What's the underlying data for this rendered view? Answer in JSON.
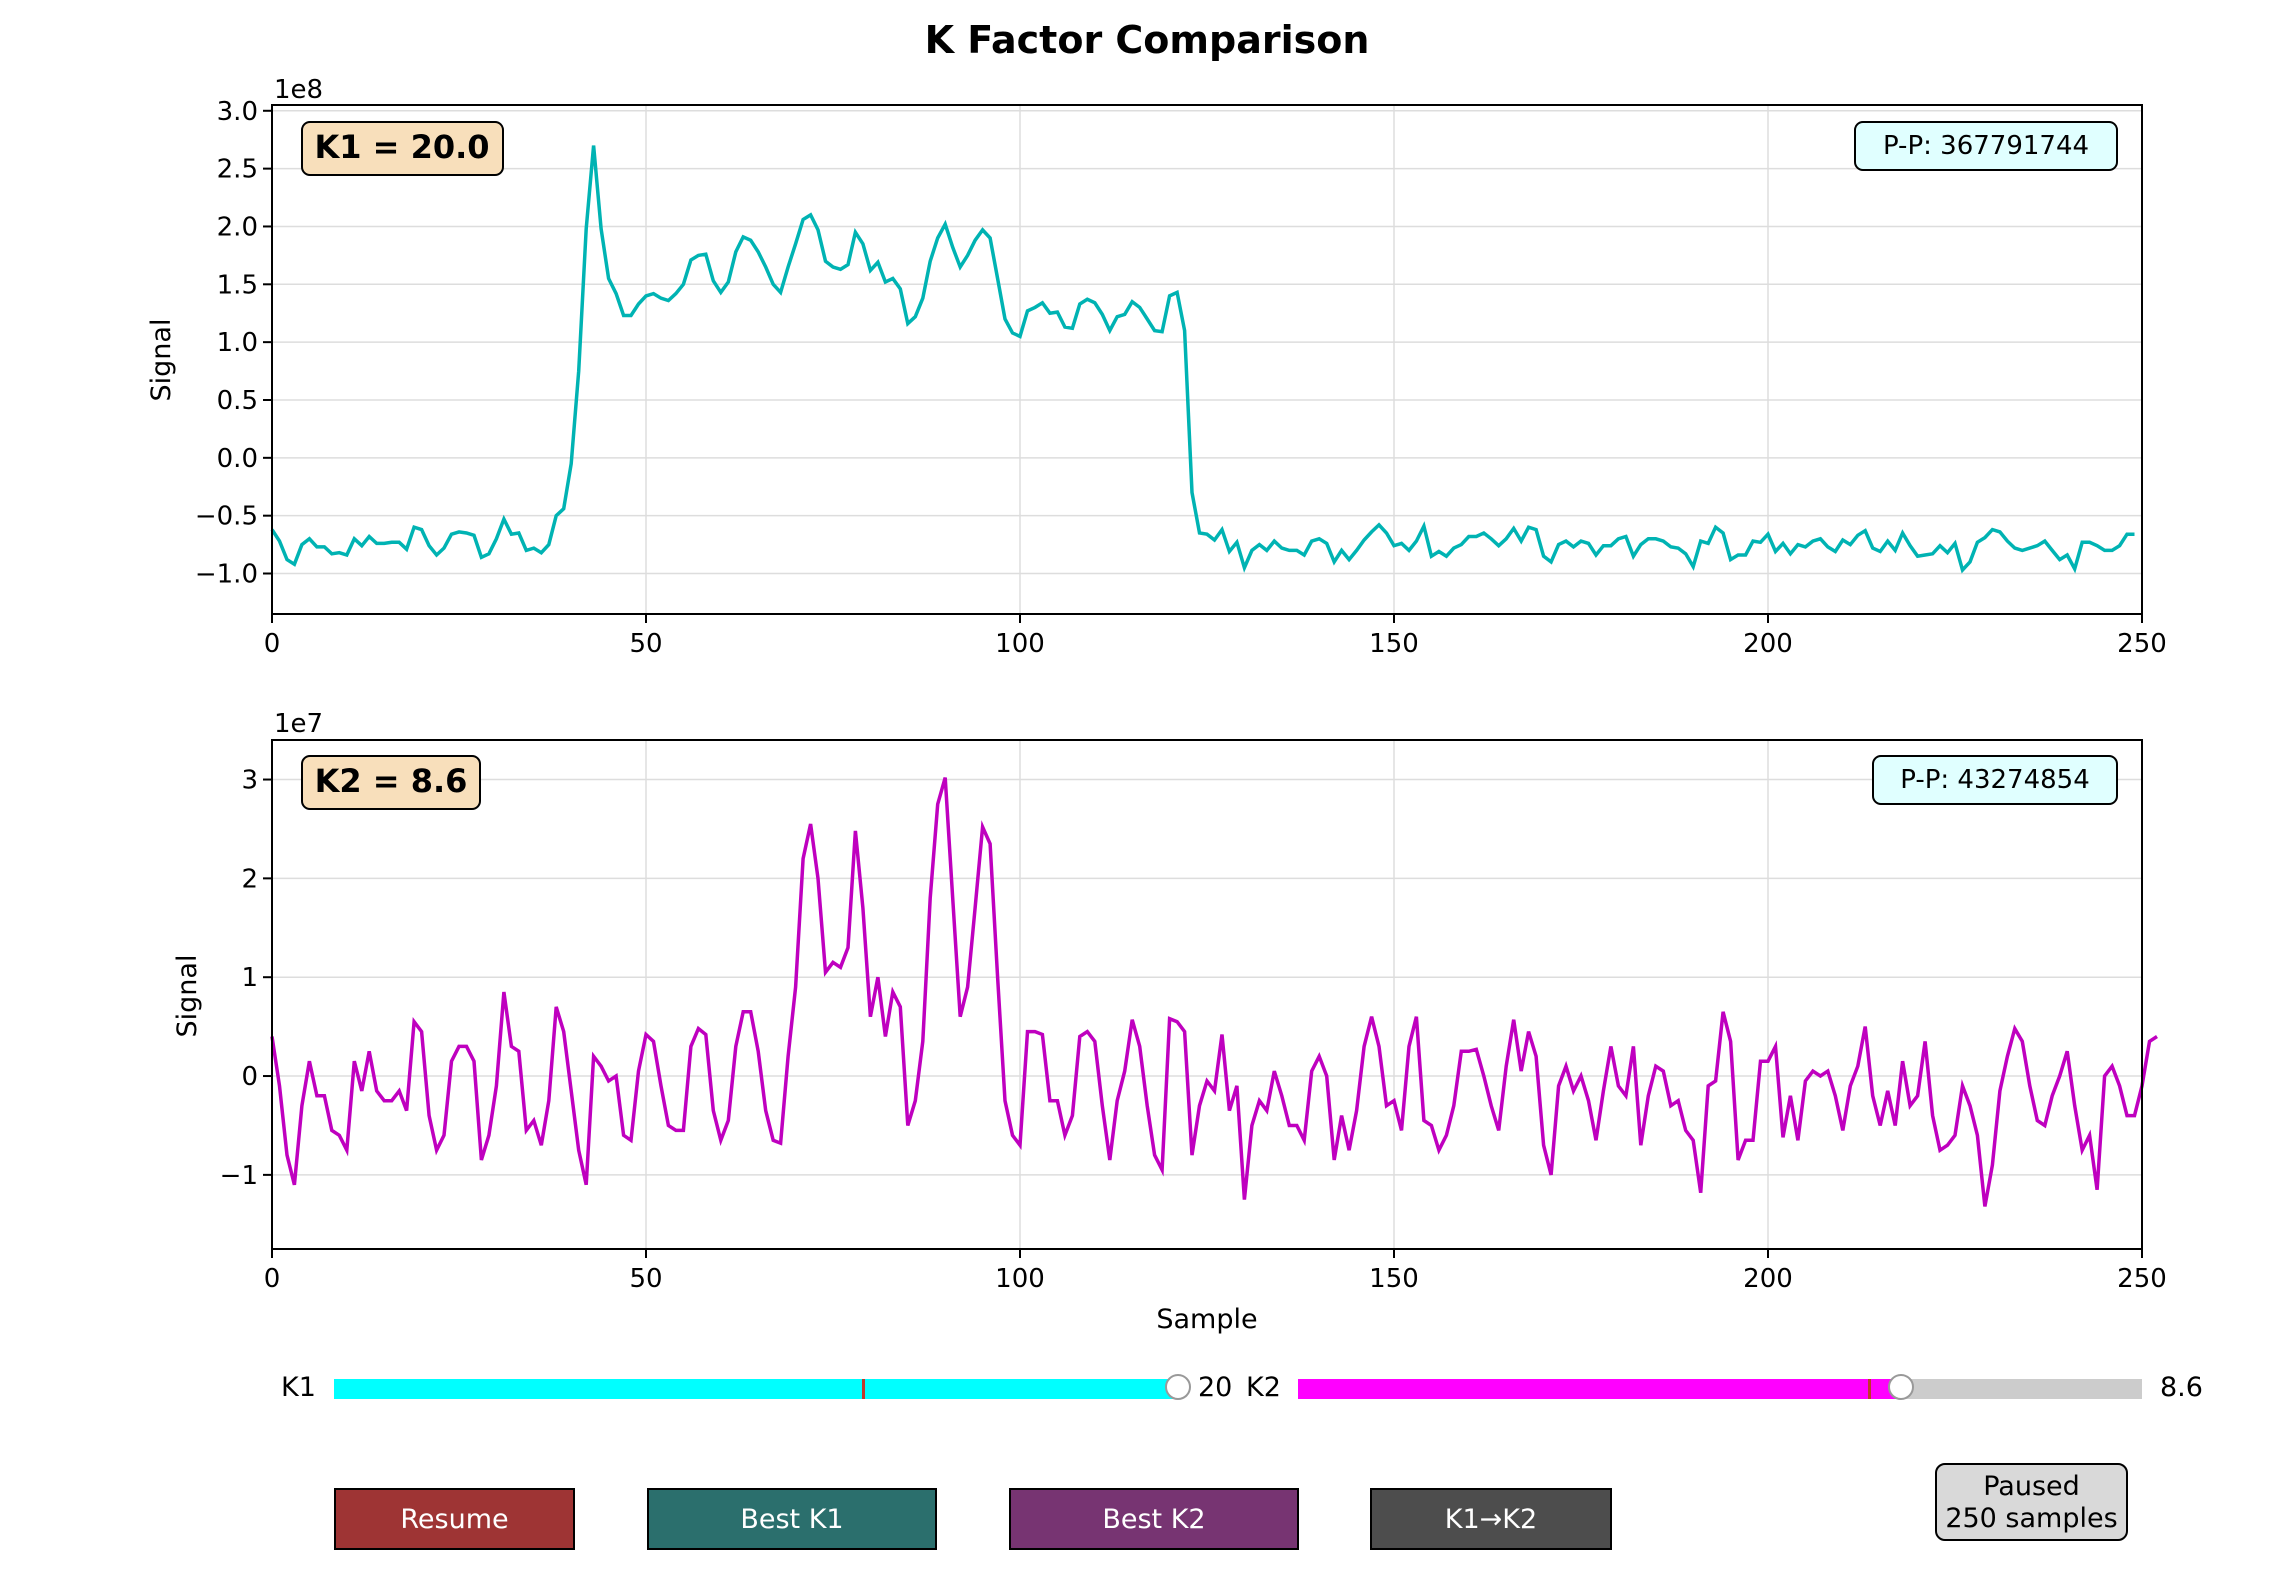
{
  "title": "K Factor Comparison",
  "colors": {
    "k1_line": "#00b3b3",
    "k2_line": "#bf00bf",
    "k1_badge": "#f8dfbb",
    "pp_badge": "#e0ffff",
    "k1_slider": "#00ffff",
    "k2_slider": "#ff00ff",
    "resume_btn": "#9e3434",
    "bestk1_btn": "#2b6f6d",
    "bestk2_btn": "#773472",
    "k1k2_btn": "#4d4d4d"
  },
  "panels": {
    "top": {
      "badge": "K1 = 20.0",
      "pp": "P-P: 367791744",
      "ylabel": "Signal",
      "offset": "1e8",
      "yticks": [
        "3.0",
        "2.5",
        "2.0",
        "1.5",
        "1.0",
        "0.5",
        "0.0",
        "−0.5",
        "−1.0"
      ],
      "xticks": [
        "0",
        "50",
        "100",
        "150",
        "200",
        "250"
      ]
    },
    "bottom": {
      "badge": "K2 = 8.6",
      "pp": "P-P: 43274854",
      "ylabel": "Signal",
      "offset": "1e7",
      "xlabel": "Sample",
      "yticks": [
        "3",
        "2",
        "1",
        "0",
        "−1"
      ],
      "xticks": [
        "0",
        "50",
        "100",
        "150",
        "200",
        "250"
      ]
    }
  },
  "sliders": {
    "k1": {
      "label": "K1",
      "value_text": "20",
      "value": 20,
      "fill_fraction": 1.0,
      "marker_fraction": 0.625
    },
    "k2": {
      "label": "K2",
      "value_text": "8.6",
      "value": 8.6,
      "fill_fraction": 0.715,
      "marker_fraction": 0.675
    }
  },
  "buttons": {
    "resume": "Resume",
    "best_k1": "Best K1",
    "best_k2": "Best K2",
    "k1_to_k2": "K1→K2"
  },
  "status": {
    "line1": "Paused",
    "line2": "250 samples"
  },
  "chart_data": [
    {
      "type": "line",
      "title": "K Factor Comparison",
      "xlabel": "",
      "ylabel": "Signal",
      "y_scale_note": "1e8",
      "xlim": [
        0,
        250
      ],
      "ylim": [
        -1.35,
        3.05
      ],
      "grid": true,
      "series": [
        {
          "name": "K1 = 20.0",
          "x": "0..249",
          "values": [
            -0.62,
            -0.72,
            -0.88,
            -0.92,
            -0.75,
            -0.7,
            -0.77,
            -0.77,
            -0.83,
            -0.82,
            -0.84,
            -0.7,
            -0.76,
            -0.68,
            -0.74,
            -0.74,
            -0.73,
            -0.73,
            -0.79,
            -0.6,
            -0.62,
            -0.76,
            -0.84,
            -0.78,
            -0.66,
            -0.64,
            -0.65,
            -0.67,
            -0.86,
            -0.83,
            -0.7,
            -0.53,
            -0.66,
            -0.65,
            -0.8,
            -0.78,
            -0.82,
            -0.75,
            -0.5,
            -0.44,
            -0.05,
            0.75,
            1.98,
            2.7,
            1.98,
            1.55,
            1.42,
            1.23,
            1.23,
            1.33,
            1.4,
            1.42,
            1.38,
            1.36,
            1.42,
            1.5,
            1.71,
            1.75,
            1.76,
            1.53,
            1.43,
            1.52,
            1.78,
            1.91,
            1.88,
            1.78,
            1.65,
            1.5,
            1.43,
            1.65,
            1.85,
            2.06,
            2.1,
            1.97,
            1.7,
            1.65,
            1.63,
            1.67,
            1.95,
            1.85,
            1.62,
            1.69,
            1.52,
            1.55,
            1.46,
            1.16,
            1.22,
            1.38,
            1.7,
            1.9,
            2.02,
            1.82,
            1.65,
            1.75,
            1.88,
            1.97,
            1.9,
            1.55,
            1.2,
            1.08,
            1.05,
            1.27,
            1.3,
            1.34,
            1.25,
            1.26,
            1.13,
            1.12,
            1.33,
            1.37,
            1.34,
            1.24,
            1.1,
            1.22,
            1.24,
            1.35,
            1.3,
            1.2,
            1.1,
            1.09,
            1.4,
            1.43,
            1.1,
            -0.3,
            -0.65,
            -0.66,
            -0.71,
            -0.62,
            -0.81,
            -0.73,
            -0.95,
            -0.8,
            -0.75,
            -0.8,
            -0.72,
            -0.78,
            -0.8,
            -0.8,
            -0.84,
            -0.72,
            -0.7,
            -0.74,
            -0.9,
            -0.8,
            -0.88,
            -0.8,
            -0.71,
            -0.64,
            -0.58,
            -0.65,
            -0.76,
            -0.74,
            -0.8,
            -0.72,
            -0.59,
            -0.85,
            -0.81,
            -0.85,
            -0.78,
            -0.75,
            -0.68,
            -0.68,
            -0.65,
            -0.7,
            -0.76,
            -0.7,
            -0.61,
            -0.72,
            -0.6,
            -0.62,
            -0.85,
            -0.9,
            -0.75,
            -0.72,
            -0.77,
            -0.72,
            -0.74,
            -0.84,
            -0.76,
            -0.76,
            -0.7,
            -0.68,
            -0.85,
            -0.75,
            -0.7,
            -0.7,
            -0.72,
            -0.77,
            -0.78,
            -0.83,
            -0.94,
            -0.72,
            -0.74,
            -0.6,
            -0.65,
            -0.88,
            -0.84,
            -0.84,
            -0.72,
            -0.73,
            -0.66,
            -0.81,
            -0.74,
            -0.83,
            -0.75,
            -0.77,
            -0.72,
            -0.7,
            -0.77,
            -0.81,
            -0.71,
            -0.75,
            -0.67,
            -0.63,
            -0.78,
            -0.81,
            -0.72,
            -0.8,
            -0.65,
            -0.76,
            -0.85,
            -0.84,
            -0.83,
            -0.76,
            -0.82,
            -0.74,
            -0.97,
            -0.9,
            -0.73,
            -0.69,
            -0.62,
            -0.64,
            -0.72,
            -0.78,
            -0.8,
            -0.78,
            -0.76,
            -0.72,
            -0.8,
            -0.88,
            -0.84,
            -0.96,
            -0.73,
            -0.73,
            -0.76,
            -0.8,
            -0.8,
            -0.76,
            -0.66,
            -0.66
          ]
        }
      ]
    },
    {
      "type": "line",
      "xlabel": "Sample",
      "ylabel": "Signal",
      "y_scale_note": "1e7",
      "xlim": [
        0,
        250
      ],
      "ylim": [
        -1.75,
        3.4
      ],
      "grid": true,
      "series": [
        {
          "name": "K2 = 8.6",
          "x": "0..249",
          "values": [
            0.4,
            -0.1,
            -0.8,
            -1.1,
            -0.3,
            0.15,
            -0.2,
            -0.2,
            -0.55,
            -0.6,
            -0.75,
            0.15,
            -0.15,
            0.25,
            -0.15,
            -0.25,
            -0.25,
            -0.15,
            -0.35,
            0.55,
            0.45,
            -0.4,
            -0.75,
            -0.6,
            0.15,
            0.3,
            0.3,
            0.15,
            -0.85,
            -0.6,
            -0.1,
            0.85,
            0.3,
            0.25,
            -0.55,
            -0.45,
            -0.7,
            -0.25,
            0.7,
            0.45,
            -0.15,
            -0.75,
            -1.1,
            0.2,
            0.1,
            -0.05,
            0.0,
            -0.6,
            -0.65,
            0.05,
            0.42,
            0.35,
            -0.1,
            -0.5,
            -0.55,
            -0.55,
            0.3,
            0.48,
            0.42,
            -0.35,
            -0.65,
            -0.45,
            0.3,
            0.65,
            0.65,
            0.25,
            -0.35,
            -0.65,
            -0.68,
            0.2,
            0.9,
            2.2,
            2.55,
            2.0,
            1.05,
            1.15,
            1.1,
            1.3,
            2.48,
            1.7,
            0.6,
            1.0,
            0.4,
            0.85,
            0.7,
            -0.5,
            -0.25,
            0.35,
            1.8,
            2.75,
            3.02,
            1.8,
            0.6,
            0.9,
            1.7,
            2.52,
            2.35,
            1.0,
            -0.25,
            -0.6,
            -0.7,
            0.45,
            0.45,
            0.42,
            -0.25,
            -0.25,
            -0.6,
            -0.4,
            0.4,
            0.45,
            0.35,
            -0.3,
            -0.85,
            -0.25,
            0.05,
            0.57,
            0.3,
            -0.3,
            -0.8,
            -0.95,
            0.58,
            0.55,
            0.45,
            -0.8,
            -0.3,
            -0.05,
            -0.15,
            0.42,
            -0.35,
            -0.1,
            -1.25,
            -0.5,
            -0.25,
            -0.35,
            0.05,
            -0.2,
            -0.5,
            -0.5,
            -0.65,
            0.05,
            0.2,
            0.0,
            -0.85,
            -0.4,
            -0.75,
            -0.35,
            0.3,
            0.6,
            0.3,
            -0.3,
            -0.25,
            -0.55,
            0.3,
            0.6,
            -0.45,
            -0.5,
            -0.75,
            -0.6,
            -0.3,
            0.25,
            0.25,
            0.27,
            0.0,
            -0.3,
            -0.55,
            0.1,
            0.57,
            0.05,
            0.45,
            0.2,
            -0.7,
            -1.0,
            -0.1,
            0.1,
            -0.15,
            0.0,
            -0.25,
            -0.65,
            -0.15,
            0.3,
            -0.1,
            -0.2,
            0.3,
            -0.7,
            -0.2,
            0.1,
            0.05,
            -0.3,
            -0.25,
            -0.55,
            -0.65,
            -1.18,
            -0.1,
            -0.05,
            0.65,
            0.35,
            -0.85,
            -0.65,
            -0.65,
            0.15,
            0.15,
            0.3,
            -0.62,
            -0.2,
            -0.65,
            -0.05,
            0.05,
            0.0,
            0.05,
            -0.2,
            -0.55,
            -0.1,
            0.1,
            0.5,
            -0.2,
            -0.5,
            -0.15,
            -0.5,
            0.15,
            -0.3,
            -0.2,
            0.35,
            -0.4,
            -0.75,
            -0.7,
            -0.6,
            -0.1,
            -0.3,
            -0.6,
            -1.32,
            -0.9,
            -0.15,
            0.2,
            0.48,
            0.35,
            -0.1,
            -0.45,
            -0.5,
            -0.2,
            0.0,
            0.25,
            -0.3,
            -0.75,
            -0.6,
            -1.15,
            0.0,
            0.1,
            -0.1,
            -0.4,
            -0.4,
            -0.1,
            0.35,
            0.4
          ]
        }
      ]
    }
  ]
}
